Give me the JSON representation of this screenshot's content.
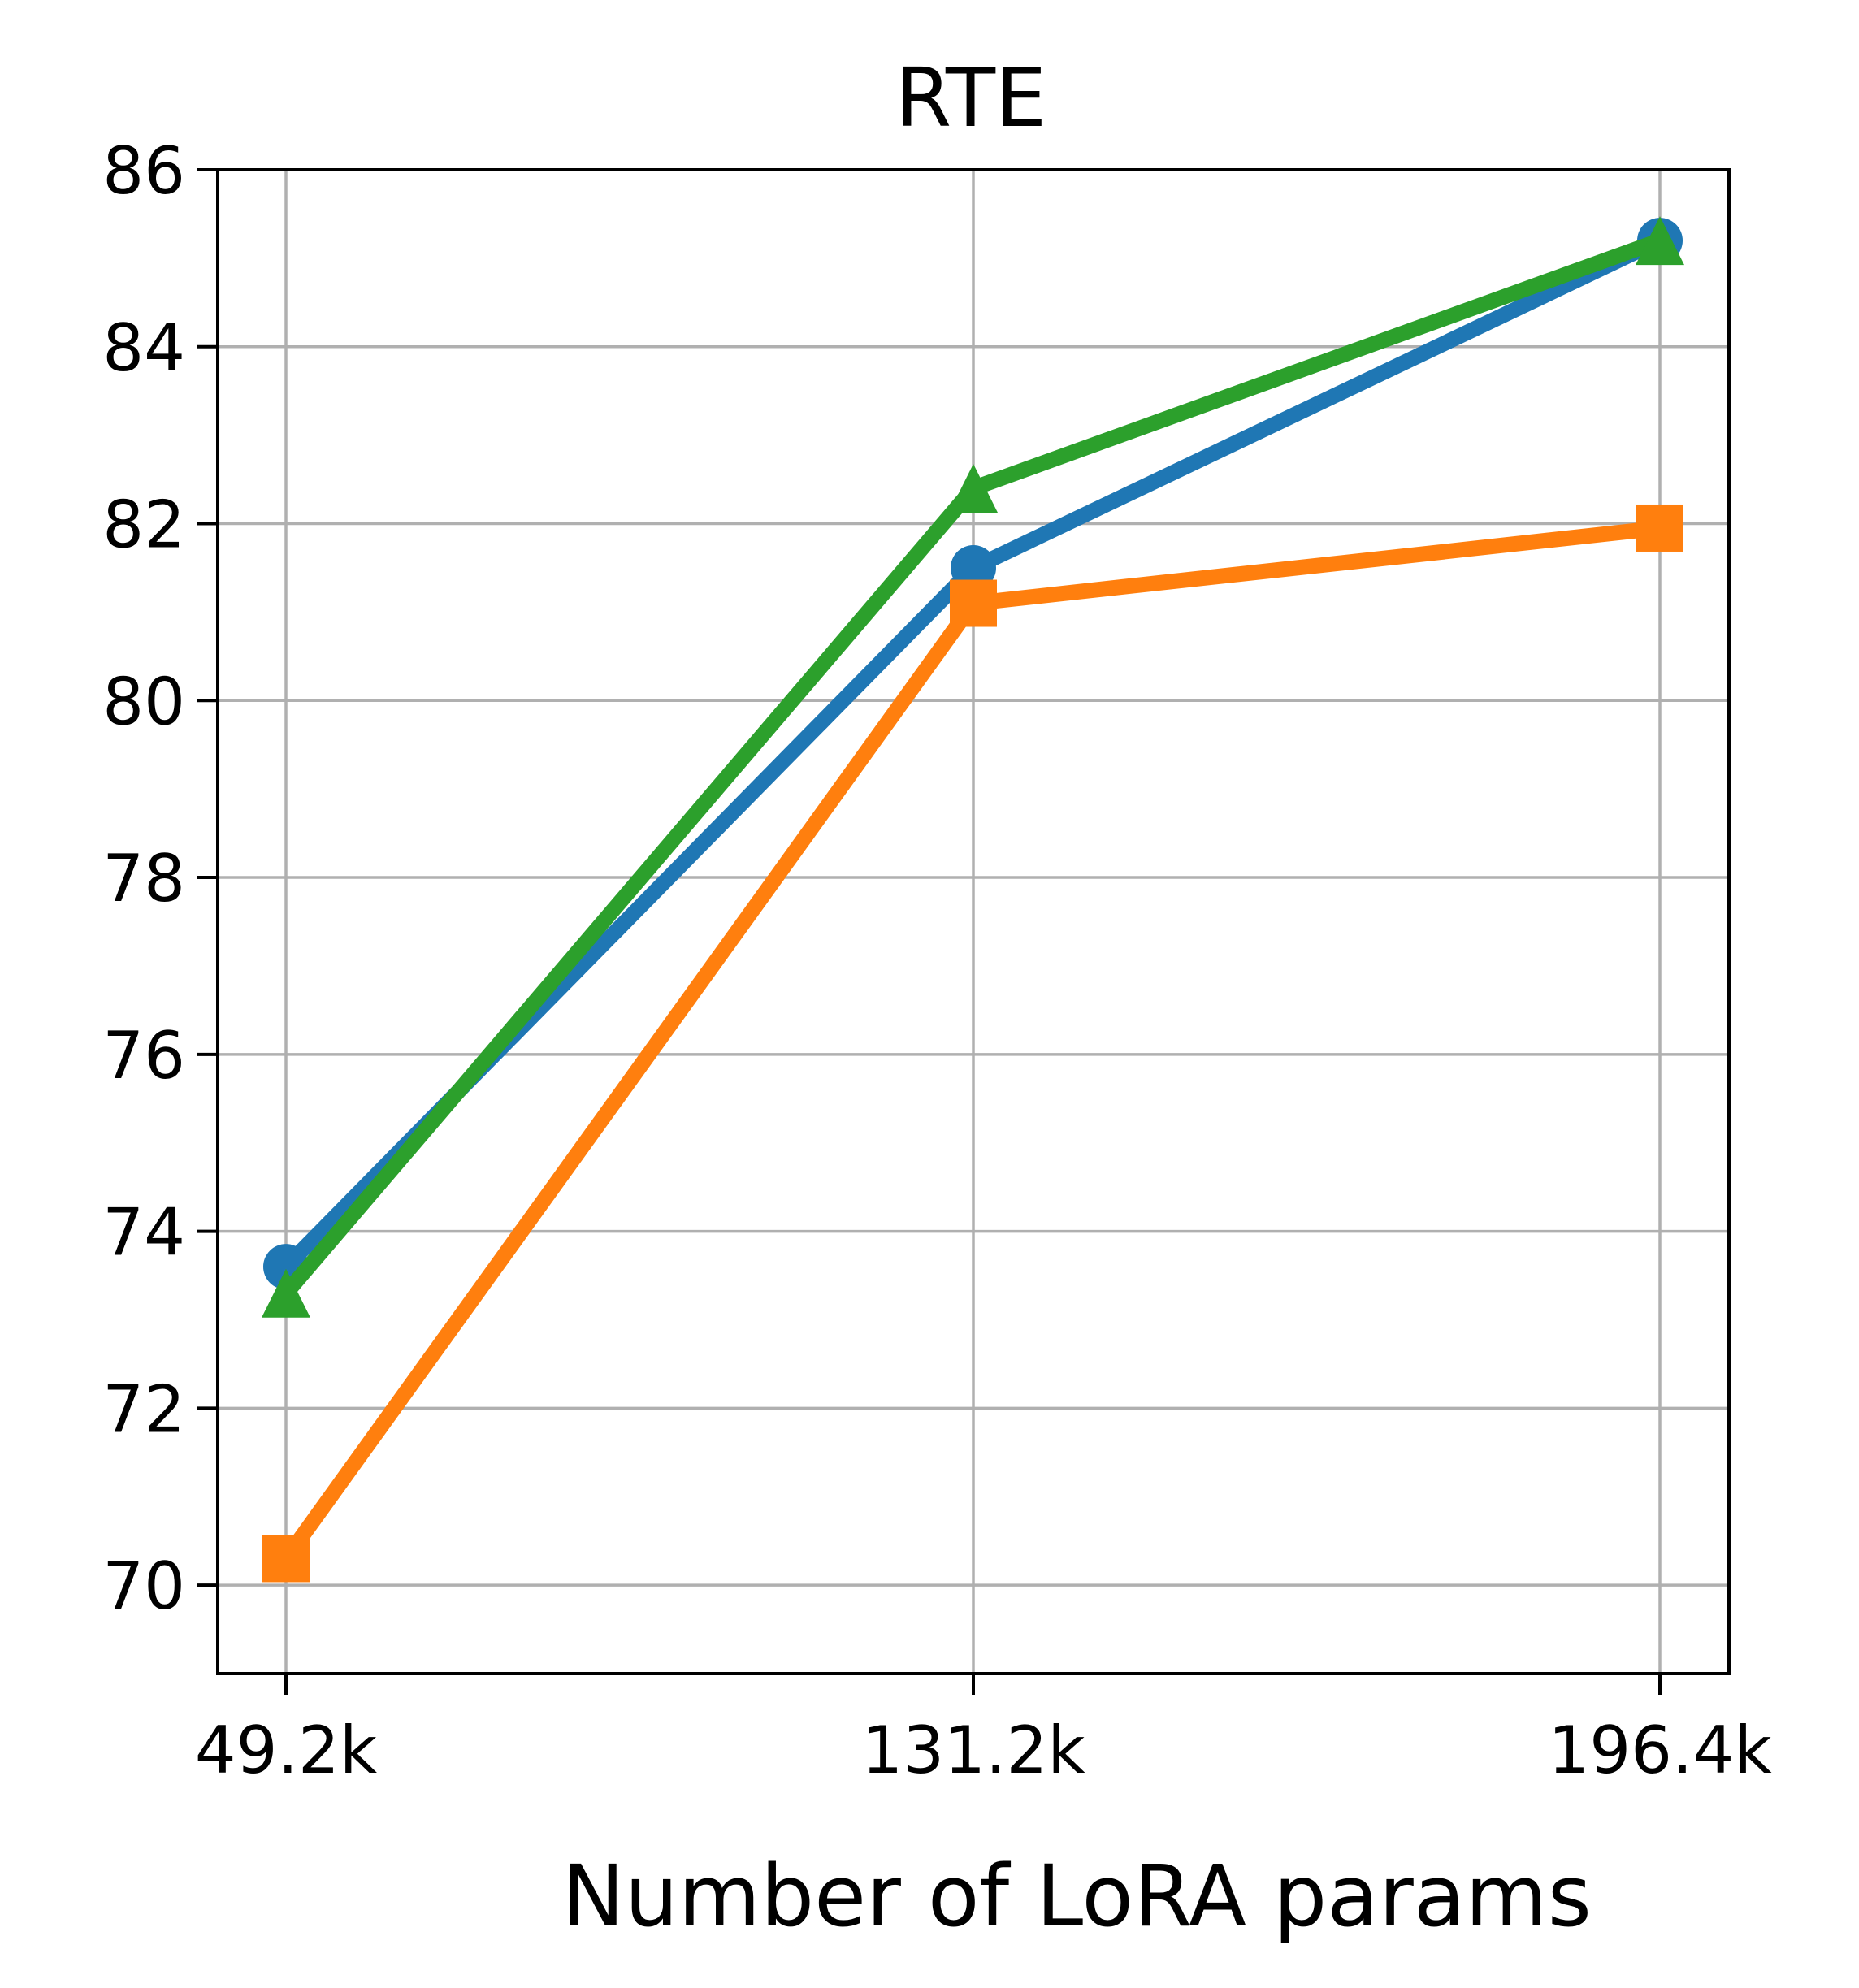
{
  "chart_data": {
    "type": "line",
    "title": "RTE",
    "xlabel": "Number of LoRA params",
    "ylabel": "",
    "categories": [
      "49.2k",
      "131.2k",
      "196.4k"
    ],
    "ylim": [
      69,
      86
    ],
    "yticks": [
      70,
      72,
      74,
      76,
      78,
      80,
      82,
      84,
      86
    ],
    "grid": true,
    "series": [
      {
        "values": [
          73.6,
          81.5,
          85.2
        ],
        "color": "#1f77b4",
        "marker": "circle"
      },
      {
        "values": [
          70.3,
          81.1,
          81.95
        ],
        "color": "#ff7f0e",
        "marker": "square"
      },
      {
        "values": [
          73.3,
          82.4,
          85.2
        ],
        "color": "#2ca02c",
        "marker": "triangle"
      }
    ]
  }
}
